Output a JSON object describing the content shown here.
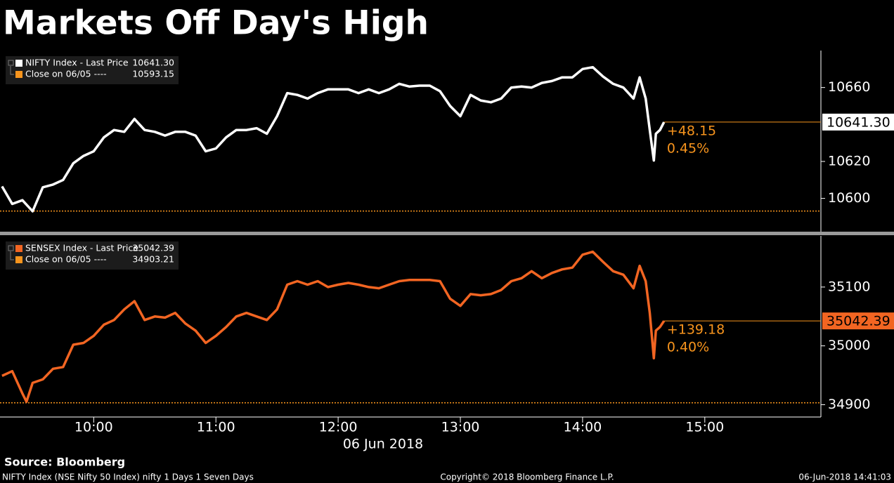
{
  "title": "Markets Off Day's High",
  "chart_data": [
    {
      "type": "line",
      "xlim": [
        "09:14",
        "15:57"
      ],
      "ylim": [
        10582,
        10680
      ],
      "yticks": [
        10600,
        10620,
        10660
      ],
      "series": [
        {
          "name": "NIFTY Index - Last Price",
          "color": "#ffffff",
          "x": [
            "09:15",
            "09:20",
            "09:25",
            "09:30",
            "09:35",
            "09:40",
            "09:45",
            "09:50",
            "09:55",
            "10:00",
            "10:05",
            "10:10",
            "10:15",
            "10:20",
            "10:25",
            "10:30",
            "10:35",
            "10:40",
            "10:45",
            "10:50",
            "10:55",
            "11:00",
            "11:05",
            "11:10",
            "11:15",
            "11:20",
            "11:25",
            "11:30",
            "11:35",
            "11:40",
            "11:45",
            "11:50",
            "11:55",
            "12:00",
            "12:05",
            "12:10",
            "12:15",
            "12:20",
            "12:25",
            "12:30",
            "12:35",
            "12:40",
            "12:45",
            "12:50",
            "12:55",
            "13:00",
            "13:05",
            "13:10",
            "13:15",
            "13:20",
            "13:25",
            "13:30",
            "13:35",
            "13:40",
            "13:45",
            "13:50",
            "13:55",
            "14:00",
            "14:05",
            "14:10",
            "14:15",
            "14:20",
            "14:25",
            "14:28",
            "14:31",
            "14:33",
            "14:35",
            "14:36",
            "14:38",
            "14:40"
          ],
          "values": [
            10606.5,
            10597,
            10599,
            10593,
            10606,
            10607.5,
            10610,
            10619,
            10623,
            10625.5,
            10633,
            10637,
            10636,
            10643,
            10637,
            10636,
            10634,
            10636,
            10636,
            10634,
            10625.5,
            10627,
            10633,
            10637,
            10637,
            10638,
            10635,
            10644.5,
            10657,
            10656,
            10654,
            10657,
            10659,
            10659,
            10659,
            10657,
            10659,
            10657,
            10659,
            10662,
            10660.5,
            10661,
            10661,
            10658,
            10650,
            10644.5,
            10656,
            10653,
            10652,
            10654,
            10660,
            10660.5,
            10660,
            10662.5,
            10663.5,
            10665.5,
            10665.5,
            10670,
            10671,
            10666,
            10662,
            10660,
            10654,
            10665.5,
            10654,
            10637,
            10620.5,
            10635,
            10637,
            10641.3
          ],
          "last": {
            "value": 10641.3,
            "label": "10641.30"
          },
          "change": "+48.15",
          "change_pct": "0.45%"
        }
      ],
      "reference": {
        "name": "Close on 06/05 ----",
        "value": 10593.15,
        "color": "#f7941d"
      }
    },
    {
      "type": "line",
      "xlim": [
        "09:14",
        "15:57"
      ],
      "xticks": [
        "10:00",
        "11:00",
        "12:00",
        "13:00",
        "14:00",
        "15:00"
      ],
      "xlabel": "06 Jun 2018",
      "ylim": [
        34879,
        35187
      ],
      "yticks": [
        34900,
        35000,
        35100
      ],
      "series": [
        {
          "name": "SENSEX Index - Last Price",
          "color": "#f26522",
          "x": [
            "09:15",
            "09:20",
            "09:25",
            "09:27",
            "09:30",
            "09:35",
            "09:40",
            "09:45",
            "09:50",
            "09:55",
            "10:00",
            "10:05",
            "10:10",
            "10:15",
            "10:20",
            "10:25",
            "10:30",
            "10:35",
            "10:40",
            "10:45",
            "10:50",
            "10:55",
            "11:00",
            "11:05",
            "11:10",
            "11:15",
            "11:20",
            "11:25",
            "11:30",
            "11:35",
            "11:40",
            "11:45",
            "11:50",
            "11:55",
            "12:00",
            "12:05",
            "12:10",
            "12:15",
            "12:20",
            "12:25",
            "12:30",
            "12:35",
            "12:40",
            "12:45",
            "12:50",
            "12:55",
            "13:00",
            "13:05",
            "13:10",
            "13:15",
            "13:20",
            "13:25",
            "13:30",
            "13:35",
            "13:40",
            "13:45",
            "13:50",
            "13:55",
            "14:00",
            "14:05",
            "14:10",
            "14:15",
            "14:20",
            "14:25",
            "14:28",
            "14:31",
            "14:33",
            "14:35",
            "14:36",
            "14:38",
            "14:40"
          ],
          "values": [
            34949,
            34957,
            34919,
            34905,
            34937,
            34943,
            34961,
            34964,
            35002,
            35005,
            35017,
            35036,
            35044,
            35062,
            35076,
            35044,
            35050,
            35048,
            35056,
            35038,
            35026,
            35005,
            35017,
            35032,
            35050,
            35056,
            35050,
            35044,
            35062,
            35104,
            35110,
            35104,
            35110,
            35100,
            35104,
            35107,
            35104,
            35100,
            35098,
            35104,
            35110,
            35112,
            35112,
            35112,
            35110,
            35080,
            35068,
            35088,
            35086,
            35088,
            35095,
            35110,
            35115,
            35127,
            35115,
            35124,
            35130,
            35133,
            35155,
            35160,
            35143,
            35127,
            35121,
            35098,
            35136,
            35110,
            35056,
            34979,
            35026,
            35032,
            35042.39
          ],
          "last": {
            "value": 35042.39,
            "label": "35042.39"
          },
          "change": "+139.18",
          "change_pct": "0.40%"
        }
      ],
      "reference": {
        "name": "Close on 06/05 ----",
        "value": 34903.21,
        "color": "#f7941d"
      }
    }
  ],
  "source": "Source: Bloomberg",
  "footer": {
    "left": "NIFTY Index (NSE Nifty 50 Index) nifty 1 Days 1 Seven Days",
    "center": "Copyright© 2018 Bloomberg Finance L.P.",
    "right": "06-Jun-2018 14:41:03"
  }
}
